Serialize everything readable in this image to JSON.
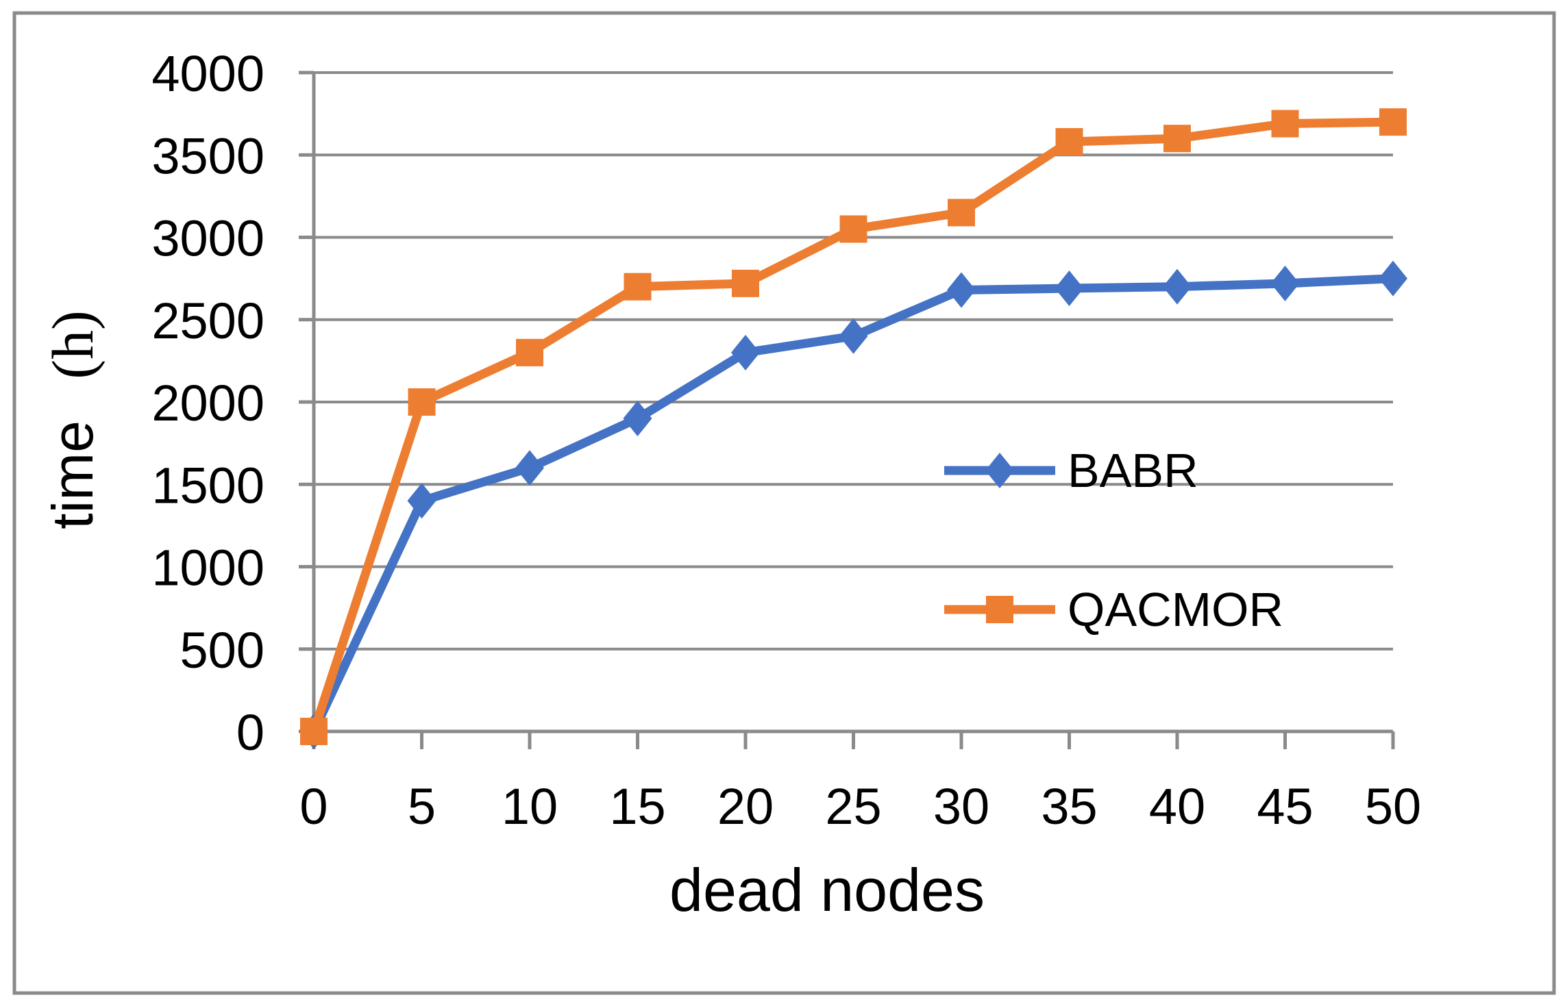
{
  "figure": {
    "background": "#FFFFFF",
    "border_color": "#8A8A8A"
  },
  "chart_data": {
    "type": "line",
    "title": "",
    "xlabel": "dead nodes",
    "ylabel": "time (h)",
    "ylabel_word": "time",
    "ylabel_unit": "(h)",
    "x": [
      0,
      5,
      10,
      15,
      20,
      25,
      30,
      35,
      40,
      45,
      50
    ],
    "xticks": [
      0,
      5,
      10,
      15,
      20,
      25,
      30,
      35,
      40,
      45,
      50
    ],
    "yticks": [
      0,
      500,
      1000,
      1500,
      2000,
      2500,
      3000,
      3500,
      4000
    ],
    "ylim": [
      0,
      4000
    ],
    "ytick_step": 500,
    "grid": "horizontal",
    "gridline_color": "#8A8A8A",
    "axis_color": "#8A8A8A",
    "text_color": "#000000",
    "legend_position": "inside-right",
    "series": [
      {
        "name": "BABR",
        "color": "#4472C4",
        "marker": "diamond",
        "values": [
          0,
          1400,
          1600,
          1900,
          2300,
          2400,
          2680,
          2690,
          2700,
          2720,
          2750
        ]
      },
      {
        "name": "QACMOR",
        "color": "#ED7D31",
        "marker": "square",
        "values": [
          0,
          2000,
          2300,
          2700,
          2720,
          3050,
          3150,
          3580,
          3600,
          3690,
          3700
        ]
      }
    ]
  }
}
